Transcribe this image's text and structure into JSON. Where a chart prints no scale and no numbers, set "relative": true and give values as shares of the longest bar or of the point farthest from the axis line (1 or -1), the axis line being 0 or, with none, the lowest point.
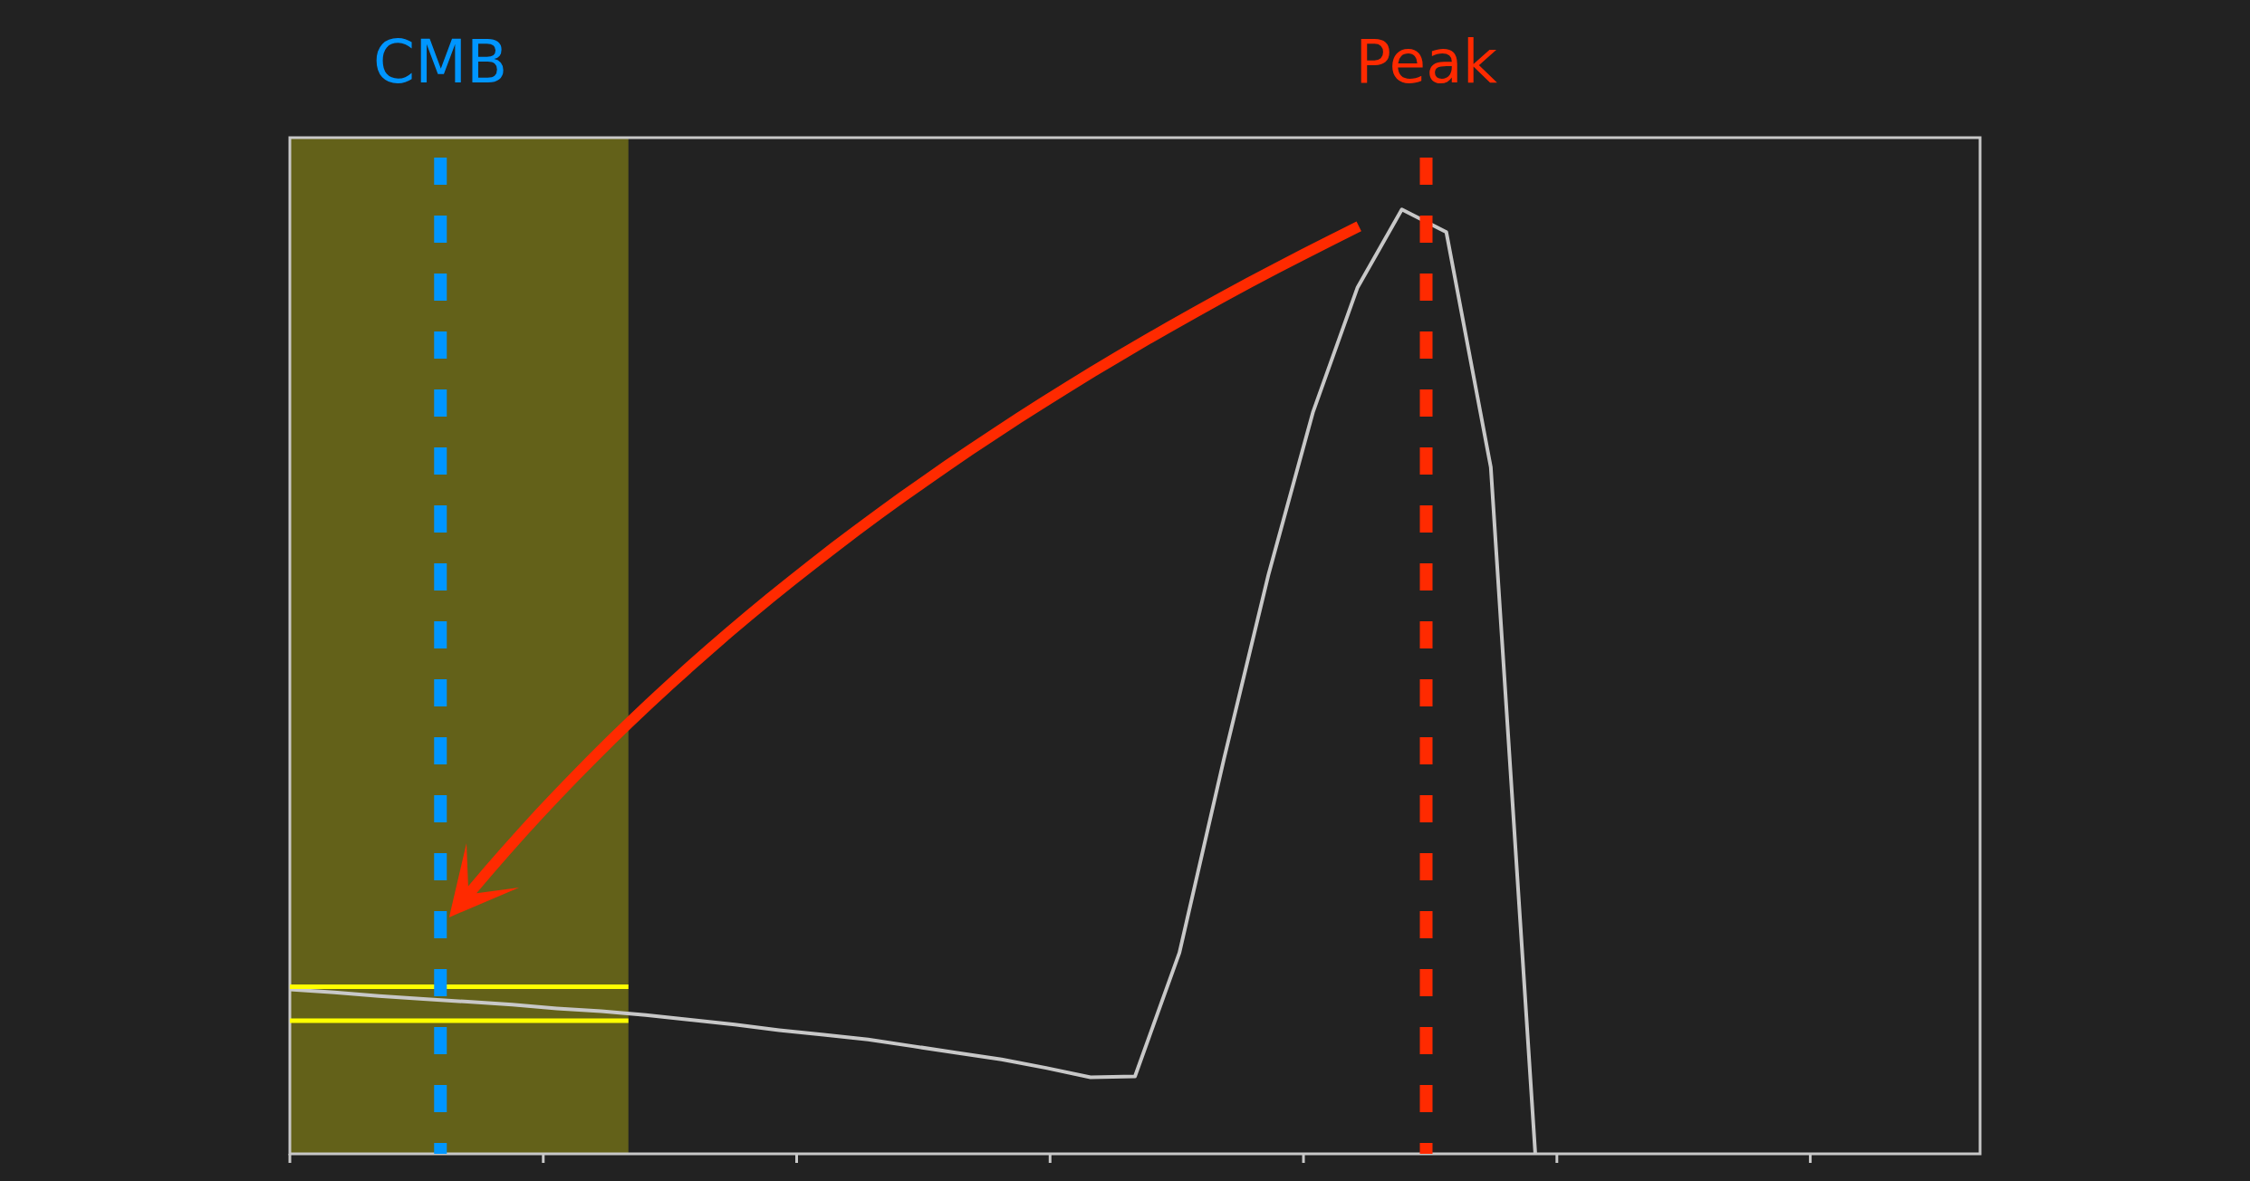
{
  "chart_data": {
    "type": "line",
    "relative": true,
    "color": "#c8c8c8",
    "marker": "none",
    "grid": false,
    "categories": [
      null,
      null,
      null,
      null,
      null,
      null,
      null,
      null,
      null,
      null,
      null,
      null,
      null,
      null,
      null,
      null,
      null,
      null,
      null,
      null,
      null,
      null,
      null,
      null,
      null,
      null,
      null,
      null,
      null,
      null,
      null,
      null,
      null,
      null,
      null,
      null,
      null,
      null,
      null
    ],
    "values": [
      0.174,
      0.171,
      0.167,
      0.164,
      0.161,
      0.158,
      0.154,
      0.151,
      0.147,
      0.142,
      0.137,
      0.131,
      0.126,
      0.121,
      0.114,
      0.107,
      0.1,
      0.091,
      0.081,
      0.082,
      0.213,
      0.418,
      0.613,
      0.785,
      0.917,
      1,
      0.976,
      0.727,
      0,
      null,
      null,
      null,
      null,
      null,
      null,
      null,
      null,
      null,
      null
    ],
    "ref_lines": [
      {
        "axis": "y",
        "value": 0.177,
        "color": "#ffff00"
      },
      {
        "axis": "y",
        "value": 0.141,
        "color": "#ffff00"
      }
    ],
    "annotations": [
      "CMB",
      "Peak"
    ]
  }
}
